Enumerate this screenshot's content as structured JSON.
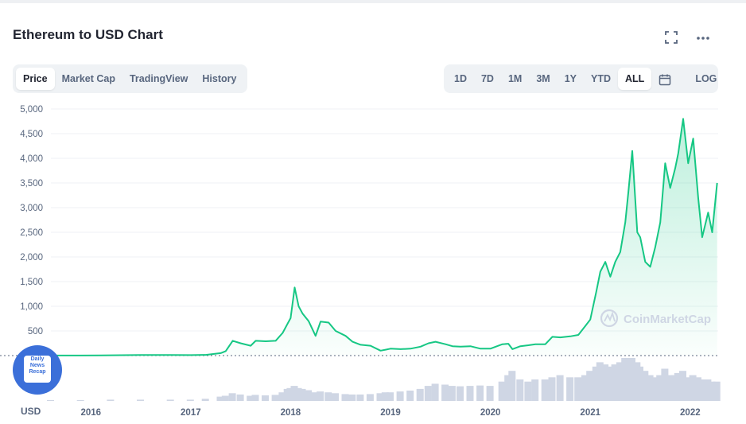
{
  "header": {
    "title": "Ethereum to USD Chart",
    "fullscreen_icon": "fullscreen-icon",
    "more_icon": "more-dots-icon"
  },
  "view_tabs": [
    {
      "label": "Price",
      "active": true
    },
    {
      "label": "Market Cap",
      "active": false
    },
    {
      "label": "TradingView",
      "active": false
    },
    {
      "label": "History",
      "active": false
    }
  ],
  "range_tabs": [
    {
      "label": "1D",
      "active": false
    },
    {
      "label": "7D",
      "active": false
    },
    {
      "label": "1M",
      "active": false
    },
    {
      "label": "3M",
      "active": false
    },
    {
      "label": "1Y",
      "active": false
    },
    {
      "label": "YTD",
      "active": false
    },
    {
      "label": "ALL",
      "active": true
    }
  ],
  "calendar_icon": "calendar-icon",
  "log_label": "LOG",
  "watermark": "CoinMarketCap",
  "badge": {
    "text": "Daily News Recap"
  },
  "colors": {
    "line": "#16c784",
    "volume": "#cfd6e4",
    "grid": "#eff2f5",
    "text": "#58667e"
  },
  "chart_data": {
    "type": "area",
    "title": "Ethereum to USD Chart",
    "xlabel": "",
    "ylabel": "",
    "unit_label": "USD",
    "x_range": [
      2015.6,
      2022.28
    ],
    "ylim": [
      0,
      5000
    ],
    "y_ticks": [
      500,
      1000,
      1500,
      2000,
      2500,
      3000,
      3500,
      4000,
      4500,
      5000
    ],
    "y_tick_labels": [
      "500",
      "1,000",
      "1,500",
      "2,000",
      "2,500",
      "3,000",
      "3,500",
      "4,000",
      "4,500",
      "5,000"
    ],
    "x_ticks": [
      2016,
      2017,
      2018,
      2019,
      2020,
      2021,
      2022
    ],
    "x_tick_labels": [
      "2016",
      "2017",
      "2018",
      "2019",
      "2020",
      "2021",
      "2022"
    ],
    "grid": true,
    "series": [
      {
        "x": [
          2015.6,
          2015.9,
          2016.2,
          2016.5,
          2016.8,
          2017.0,
          2017.15,
          2017.3,
          2017.35,
          2017.42,
          2017.5,
          2017.6,
          2017.65,
          2017.75,
          2017.85,
          2017.92,
          2017.97,
          2018.0,
          2018.04,
          2018.08,
          2018.12,
          2018.18,
          2018.25,
          2018.3,
          2018.38,
          2018.45,
          2018.55,
          2018.62,
          2018.7,
          2018.8,
          2018.9,
          2018.95,
          2019.0,
          2019.1,
          2019.2,
          2019.3,
          2019.38,
          2019.45,
          2019.55,
          2019.62,
          2019.7,
          2019.8,
          2019.9,
          2020.0,
          2020.12,
          2020.18,
          2020.22,
          2020.3,
          2020.38,
          2020.45,
          2020.55,
          2020.62,
          2020.7,
          2020.8,
          2020.88,
          2020.95,
          2021.0,
          2021.06,
          2021.1,
          2021.15,
          2021.2,
          2021.25,
          2021.3,
          2021.35,
          2021.38,
          2021.42,
          2021.47,
          2021.5,
          2021.55,
          2021.6,
          2021.65,
          2021.7,
          2021.75,
          2021.8,
          2021.85,
          2021.88,
          2021.93,
          2021.98,
          2022.03,
          2022.08,
          2022.12,
          2022.18,
          2022.22,
          2022.27
        ],
        "values": [
          1,
          1,
          6,
          12,
          11,
          10,
          15,
          50,
          90,
          300,
          250,
          200,
          300,
          290,
          300,
          460,
          650,
          760,
          1380,
          1000,
          850,
          700,
          400,
          690,
          670,
          500,
          400,
          280,
          220,
          200,
          100,
          120,
          140,
          130,
          140,
          180,
          250,
          280,
          230,
          190,
          180,
          190,
          140,
          140,
          230,
          240,
          130,
          190,
          210,
          230,
          230,
          380,
          370,
          390,
          420,
          600,
          730,
          1300,
          1700,
          1900,
          1600,
          1900,
          2100,
          2700,
          3300,
          4150,
          2500,
          2400,
          1900,
          1800,
          2200,
          2700,
          3900,
          3400,
          3800,
          4100,
          4800,
          3900,
          4400,
          3200,
          2400,
          2900,
          2500,
          3500
        ]
      }
    ],
    "volume": [
      0.02,
      0.02,
      0.03,
      0.03,
      0.03,
      0.03,
      0.05,
      0.1,
      0.12,
      0.18,
      0.15,
      0.12,
      0.14,
      0.13,
      0.14,
      0.2,
      0.28,
      0.3,
      0.35,
      0.3,
      0.28,
      0.25,
      0.2,
      0.22,
      0.2,
      0.18,
      0.16,
      0.15,
      0.15,
      0.16,
      0.18,
      0.2,
      0.2,
      0.22,
      0.24,
      0.28,
      0.35,
      0.4,
      0.38,
      0.35,
      0.34,
      0.35,
      0.36,
      0.35,
      0.45,
      0.6,
      0.7,
      0.5,
      0.45,
      0.5,
      0.5,
      0.55,
      0.6,
      0.55,
      0.55,
      0.6,
      0.7,
      0.8,
      0.9,
      0.85,
      0.8,
      0.85,
      0.9,
      1.0,
      0.95,
      1.0,
      0.9,
      0.8,
      0.7,
      0.6,
      0.55,
      0.6,
      0.75,
      0.6,
      0.6,
      0.65,
      0.7,
      0.55,
      0.6,
      0.55,
      0.5,
      0.5,
      0.45,
      0.45
    ]
  }
}
